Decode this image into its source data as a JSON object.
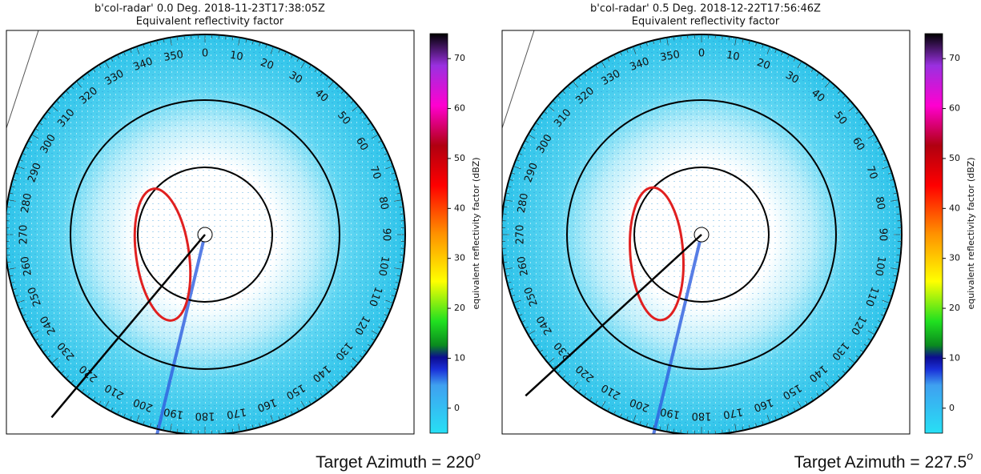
{
  "chart_data": [
    {
      "type": "radar-ppi",
      "title": "b'col-radar' 0.0 Deg. 2018-11-23T17:38:05Z",
      "subtitle": "Equivalent reflectivity factor",
      "azimuth_ticks": [
        0,
        10,
        20,
        30,
        40,
        50,
        60,
        70,
        80,
        90,
        100,
        110,
        120,
        130,
        140,
        150,
        160,
        170,
        180,
        190,
        200,
        210,
        220,
        230,
        240,
        250,
        260,
        270,
        280,
        290,
        300,
        310,
        320,
        330,
        340,
        350
      ],
      "colorbar": {
        "label": "equivalent reflectivity factor (dBZ)",
        "lim": [
          -5,
          75
        ],
        "ticks": [
          0,
          10,
          20,
          30,
          40,
          50,
          60,
          70
        ]
      },
      "annotation": {
        "text": "Target Azimuth =",
        "value": 220,
        "unit": "o"
      }
    },
    {
      "type": "radar-ppi",
      "title": "b'col-radar' 0.5 Deg. 2018-12-22T17:56:46Z",
      "subtitle": "Equivalent reflectivity factor",
      "azimuth_ticks": [
        0,
        10,
        20,
        30,
        40,
        50,
        60,
        70,
        80,
        90,
        100,
        110,
        120,
        130,
        140,
        150,
        160,
        170,
        180,
        190,
        200,
        210,
        220,
        230,
        240,
        250,
        260,
        270,
        280,
        290,
        300,
        310,
        320,
        330,
        340,
        350
      ],
      "colorbar": {
        "label": "equivalent reflectivity factor (dBZ)",
        "lim": [
          -5,
          75
        ],
        "ticks": [
          0,
          10,
          20,
          30,
          40,
          50,
          60,
          70
        ]
      },
      "annotation": {
        "text": "Target Azimuth =",
        "value": 227.5,
        "unit": "o"
      }
    }
  ]
}
